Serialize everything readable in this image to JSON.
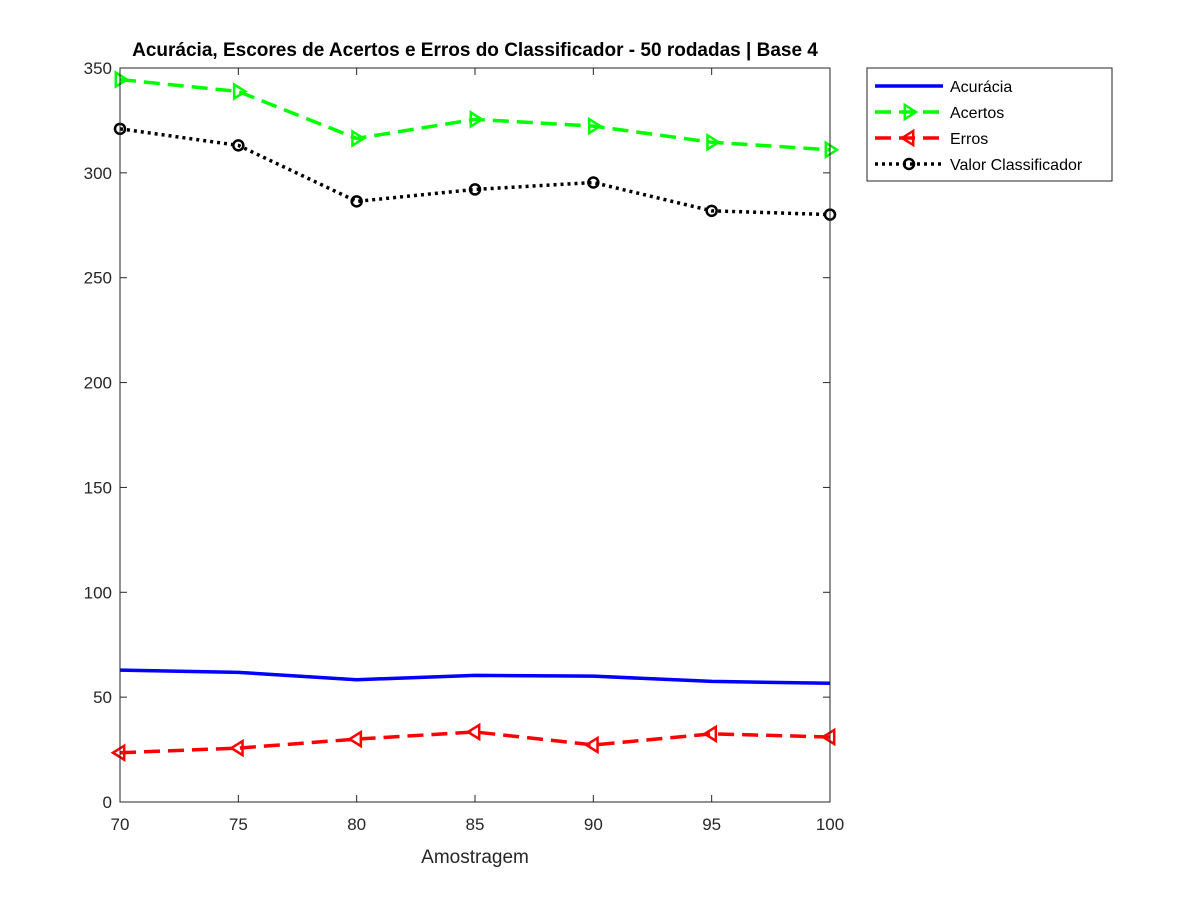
{
  "chart_data": {
    "type": "line",
    "title": "Acurácia, Escores de Acertos e Erros do Classificador - 50 rodadas | Base 4",
    "xlabel": "Amostragem",
    "ylabel": "",
    "x": [
      70,
      75,
      80,
      85,
      90,
      95,
      100
    ],
    "xlim": [
      70,
      100
    ],
    "ylim": [
      0,
      350
    ],
    "xticks": [
      70,
      75,
      80,
      85,
      90,
      95,
      100
    ],
    "yticks": [
      0,
      50,
      100,
      150,
      200,
      250,
      300,
      350
    ],
    "grid": false,
    "legend_position": "outside-top-right",
    "series": [
      {
        "name": "Acurácia",
        "color": "#0000ff",
        "line_style": "solid",
        "marker": "none",
        "values": [
          62.9,
          61.8,
          58.3,
          60.4,
          60.0,
          57.5,
          56.6
        ]
      },
      {
        "name": "Acertos",
        "color": "#00ff00",
        "line_style": "dashed",
        "marker": "triangle-right",
        "values": [
          344.5,
          338.8,
          316.4,
          325.5,
          322.3,
          314.6,
          311.0
        ]
      },
      {
        "name": "Erros",
        "color": "#ff0000",
        "line_style": "dashed",
        "marker": "triangle-left",
        "values": [
          23.5,
          25.7,
          30.0,
          33.4,
          27.2,
          32.5,
          31.0
        ]
      },
      {
        "name": "Valor Classificador",
        "color": "#000000",
        "line_style": "dotted",
        "marker": "circle",
        "values": [
          321.0,
          313.1,
          286.4,
          292.1,
          295.4,
          281.9,
          280.1
        ]
      }
    ]
  }
}
